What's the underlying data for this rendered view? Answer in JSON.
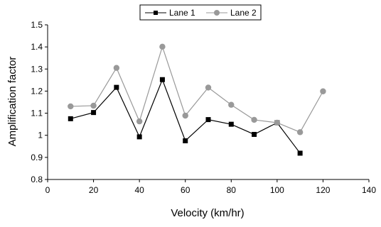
{
  "chart_data": {
    "type": "line",
    "xlabel": "Velocity (km/hr)",
    "ylabel": "Amplification factor",
    "xlim": [
      0,
      140
    ],
    "ylim": [
      0.8,
      1.5
    ],
    "x_ticks": [
      0,
      20,
      40,
      60,
      80,
      100,
      120,
      140
    ],
    "y_ticks": [
      0.8,
      0.9,
      1,
      1.1,
      1.2,
      1.3,
      1.4,
      1.5
    ],
    "y_tick_labels": [
      "0.8",
      "0.9",
      "1",
      "1.1",
      "1.2",
      "1.3",
      "1.4",
      "1.5"
    ],
    "grid": false,
    "legend_position": "top-center",
    "series": [
      {
        "name": "Lane 1",
        "color": "#000000",
        "marker": "square",
        "x": [
          10,
          20,
          30,
          40,
          50,
          60,
          70,
          80,
          90,
          100,
          110
        ],
        "y": [
          1.075,
          1.103,
          1.217,
          0.993,
          1.252,
          0.975,
          1.071,
          1.05,
          1.004,
          1.057,
          0.919
        ]
      },
      {
        "name": "Lane 2",
        "color": "#999999",
        "marker": "circle",
        "x": [
          10,
          20,
          30,
          40,
          50,
          60,
          70,
          80,
          90,
          100,
          110,
          120
        ],
        "y": [
          1.131,
          1.134,
          1.305,
          1.063,
          1.401,
          1.089,
          1.216,
          1.138,
          1.07,
          1.057,
          1.014,
          1.199
        ]
      }
    ]
  }
}
